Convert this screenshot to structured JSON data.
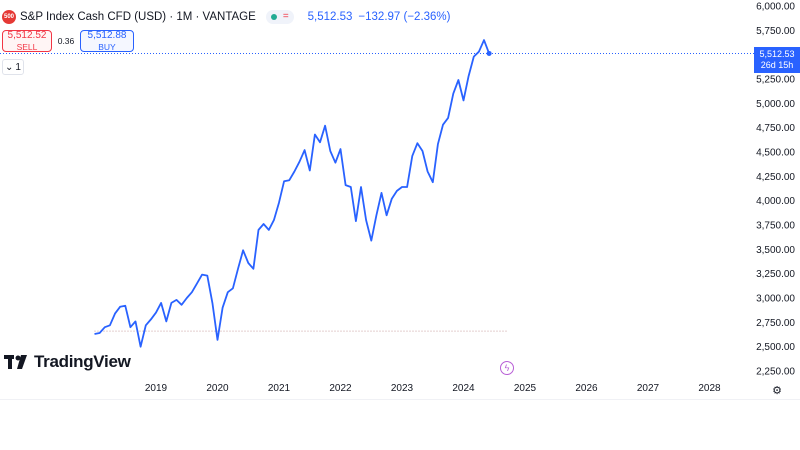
{
  "header": {
    "symbol_badge": "500",
    "title": "S&P Index Cash CFD (USD) · 1M · VANTAGE",
    "last_price": "5,512.53",
    "change": "−132.97 (−2.36%)"
  },
  "trade": {
    "sell_price": "5,512.52",
    "sell_label": "SELL",
    "spread": "0.36",
    "buy_price": "5,512.88",
    "buy_label": "BUY"
  },
  "collapse_label": "1",
  "current_price_tag": {
    "price": "5,512.53",
    "countdown": "26d 15h"
  },
  "brand": {
    "name": "TradingView"
  },
  "colors": {
    "line": "#2962ff",
    "accent": "#2962ff",
    "sell": "#f23645",
    "logo_badge": "#e53935"
  },
  "chart_data": {
    "type": "line",
    "title": "S&P Index Cash CFD (USD) · 1M · VANTAGE",
    "xlabel": "",
    "ylabel": "",
    "x_ticks": [
      "2019",
      "2020",
      "2021",
      "2022",
      "2023",
      "2024",
      "2025",
      "2026",
      "2027",
      "2028"
    ],
    "y_ticks": [
      "2,250.00",
      "2,500.00",
      "2,750.00",
      "3,000.00",
      "3,250.00",
      "3,500.00",
      "3,750.00",
      "4,000.00",
      "4,250.00",
      "4,500.00",
      "4,750.00",
      "5,000.00",
      "5,250.00",
      "5,500.00",
      "5,750.00",
      "6,000.00"
    ],
    "ylim": [
      2250,
      6000
    ],
    "xlim": [
      "2018-01",
      "2028-09"
    ],
    "grid": false,
    "reference_line": 2660,
    "series": [
      {
        "points": [
          [
            "2018-01",
            2630
          ],
          [
            "2018-02",
            2640
          ],
          [
            "2018-03",
            2700
          ],
          [
            "2018-04",
            2720
          ],
          [
            "2018-05",
            2840
          ],
          [
            "2018-06",
            2910
          ],
          [
            "2018-07",
            2920
          ],
          [
            "2018-08",
            2700
          ],
          [
            "2018-09",
            2760
          ],
          [
            "2018-10",
            2500
          ],
          [
            "2018-11",
            2720
          ],
          [
            "2018-12",
            2780
          ],
          [
            "2019-01",
            2850
          ],
          [
            "2019-02",
            2950
          ],
          [
            "2019-03",
            2760
          ],
          [
            "2019-04",
            2950
          ],
          [
            "2019-05",
            2980
          ],
          [
            "2019-06",
            2930
          ],
          [
            "2019-07",
            3000
          ],
          [
            "2019-08",
            3060
          ],
          [
            "2019-09",
            3150
          ],
          [
            "2019-10",
            3240
          ],
          [
            "2019-11",
            3230
          ],
          [
            "2019-12",
            2950
          ],
          [
            "2020-01",
            2570
          ],
          [
            "2020-02",
            2900
          ],
          [
            "2020-03",
            3060
          ],
          [
            "2020-04",
            3100
          ],
          [
            "2020-05",
            3300
          ],
          [
            "2020-06",
            3490
          ],
          [
            "2020-07",
            3360
          ],
          [
            "2020-08",
            3300
          ],
          [
            "2020-09",
            3700
          ],
          [
            "2020-10",
            3760
          ],
          [
            "2020-11",
            3700
          ],
          [
            "2020-12",
            3800
          ],
          [
            "2021-01",
            3980
          ],
          [
            "2021-02",
            4200
          ],
          [
            "2021-03",
            4210
          ],
          [
            "2021-04",
            4300
          ],
          [
            "2021-05",
            4400
          ],
          [
            "2021-06",
            4520
          ],
          [
            "2021-07",
            4310
          ],
          [
            "2021-08",
            4680
          ],
          [
            "2021-09",
            4600
          ],
          [
            "2021-10",
            4770
          ],
          [
            "2021-11",
            4510
          ],
          [
            "2021-12",
            4390
          ],
          [
            "2022-01",
            4530
          ],
          [
            "2022-02",
            4160
          ],
          [
            "2022-03",
            4140
          ],
          [
            "2022-04",
            3790
          ],
          [
            "2022-05",
            4140
          ],
          [
            "2022-06",
            3800
          ],
          [
            "2022-07",
            3590
          ],
          [
            "2022-08",
            3850
          ],
          [
            "2022-09",
            4080
          ],
          [
            "2022-10",
            3850
          ],
          [
            "2022-11",
            4020
          ],
          [
            "2022-12",
            4100
          ],
          [
            "2023-01",
            4140
          ],
          [
            "2023-02",
            4140
          ],
          [
            "2023-03",
            4460
          ],
          [
            "2023-04",
            4590
          ],
          [
            "2023-05",
            4510
          ],
          [
            "2023-06",
            4300
          ],
          [
            "2023-07",
            4190
          ],
          [
            "2023-08",
            4580
          ],
          [
            "2023-09",
            4780
          ],
          [
            "2023-10",
            4850
          ],
          [
            "2023-11",
            5100
          ],
          [
            "2023-12",
            5240
          ],
          [
            "2024-01",
            5030
          ],
          [
            "2024-02",
            5280
          ],
          [
            "2024-03",
            5480
          ],
          [
            "2024-04",
            5530
          ],
          [
            "2024-05",
            5650
          ],
          [
            "2024-06",
            5512.53
          ]
        ]
      }
    ]
  }
}
